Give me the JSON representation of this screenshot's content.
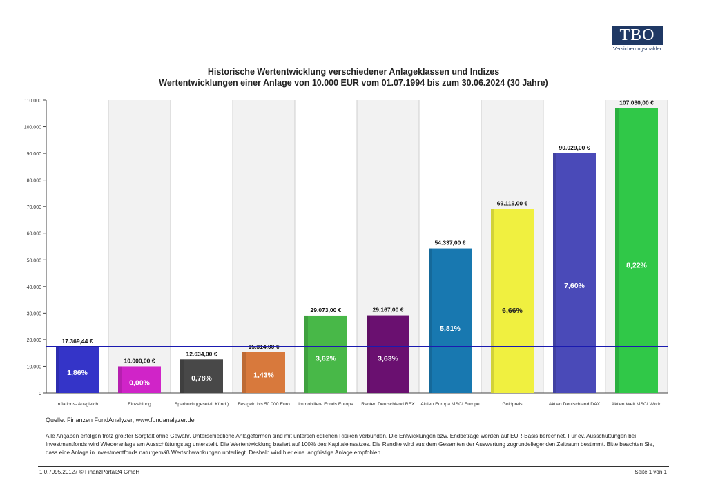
{
  "logo": {
    "text": "TBO",
    "sub": "Versicherungsmakler"
  },
  "chart_data": {
    "type": "bar",
    "title": "Historische Wertentwicklung verschiedener Anlageklassen und Indizes",
    "subtitle": "Wertentwicklungen einer Anlage von 10.000 EUR vom 01.07.1994 bis zum 30.06.2024 (30 Jahre)",
    "categories": [
      "Inflations- Ausgleich",
      "Einzahlung",
      "Sparbuch (gesetzl. Künd.)",
      "Festgeld bis 50.000 Euro",
      "Immobilien- Fonds Europa",
      "Renten Deutschland REX",
      "Aktien Europa MSCI Europe",
      "Goldpreis",
      "Aktien Deutschland DAX",
      "Aktien Welt MSCI World"
    ],
    "values": [
      17369.44,
      10000,
      12634,
      15314,
      29073,
      29167,
      54337,
      69119,
      90029,
      107030
    ],
    "value_labels": [
      "17.369,44 €",
      "10.000,00 €",
      "12.634,00 €",
      "15.314,00 €",
      "29.073,00 €",
      "29.167,00 €",
      "54.337,00 €",
      "69.119,00 €",
      "90.029,00 €",
      "107.030,00 €"
    ],
    "rates": [
      "1,86%",
      "0,00%",
      "0,78%",
      "1,43%",
      "3,62%",
      "3,63%",
      "5,81%",
      "6,66%",
      "7,60%",
      "8,22%"
    ],
    "colors": [
      "#3434c8",
      "#d024c8",
      "#484848",
      "#d8793c",
      "#48b848",
      "#6a1070",
      "#1878b0",
      "#f0f040",
      "#4a4ab8",
      "#30c848"
    ],
    "rate_text_colors": [
      "#ffffff",
      "#ffffff",
      "#ffffff",
      "#ffffff",
      "#ffffff",
      "#ffffff",
      "#ffffff",
      "#222222",
      "#ffffff",
      "#ffffff"
    ],
    "yticks": [
      0,
      10000,
      20000,
      30000,
      40000,
      50000,
      60000,
      70000,
      80000,
      90000,
      100000,
      110000
    ],
    "ytick_labels": [
      "0",
      "10.000",
      "20.000",
      "30.000",
      "40.000",
      "50.000",
      "60.000",
      "70.000",
      "80.000",
      "90.000",
      "100.000",
      "110.000"
    ],
    "ylim": [
      0,
      110000
    ],
    "reference_line": {
      "value": 17369.44,
      "color": "#1a1ab0"
    },
    "grid": true
  },
  "source": "Quelle: Finanzen FundAnalyzer, www.fundanalyzer.de",
  "disclaimer": "Alle Angaben erfolgen trotz größter Sorgfalt ohne Gewähr. Unterschiedliche Anlageformen sind mit unterschiedlichen Risiken verbunden. Die Entwicklungen bzw. Endbeträge werden auf EUR-Basis berechnet. Für ev. Ausschüttungen bei Investmentfonds wird Wiederanlage am Ausschüttungstag unterstellt. Die Wertentwicklung basiert auf 100% des Kapitaleinsatzes. Die Rendite wird aus dem Gesamten der Auswertung zugrundeliegenden Zeitraum bestimmt. Bitte beachten Sie, dass eine Anlage in Investmentfonds naturgemäß Wertschwankungen unterliegt. Deshalb wird hier eine langfristige Anlage empfohlen.",
  "footer": {
    "left": "1.0.7095.20127 © FinanzPortal24 GmbH",
    "right": "Seite 1 von 1"
  }
}
